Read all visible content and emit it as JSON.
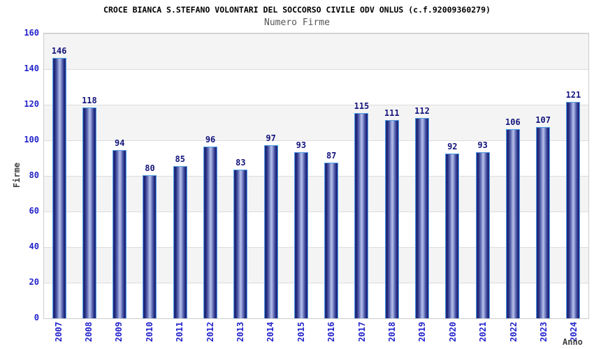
{
  "chart_data": {
    "type": "bar",
    "title": "CROCE BIANCA S.STEFANO VOLONTARI DEL SOCCORSO CIVILE ODV ONLUS (c.f.92009360279)",
    "subtitle": "Numero Firme",
    "xlabel": "Anno",
    "ylabel": "Firme",
    "categories": [
      "2007",
      "2008",
      "2009",
      "2010",
      "2011",
      "2012",
      "2013",
      "2014",
      "2015",
      "2016",
      "2017",
      "2018",
      "2019",
      "2020",
      "2021",
      "2022",
      "2023",
      "2024"
    ],
    "values": [
      146,
      118,
      94,
      80,
      85,
      96,
      83,
      97,
      93,
      87,
      115,
      111,
      112,
      92,
      93,
      106,
      107,
      121
    ],
    "ylim": [
      0,
      160
    ],
    "yticks": [
      0,
      20,
      40,
      60,
      80,
      100,
      120,
      140,
      160
    ],
    "grid": "horizontal-bands-alternating",
    "legend_position": "none",
    "bar_value_labels_shown": true,
    "colors": {
      "bar_dark": "#1a2170",
      "bar_light": "#b6c0e9",
      "bar_border": "#4f9de2",
      "tick_text": "#2222cc",
      "value_label_text": "#14147d",
      "title_text": "#000000",
      "subtitle_text": "#555555",
      "axis_title_text": "#404040",
      "band_gray": "#f4f4f4",
      "gridline": "#dddddd",
      "plot_border": "#cccccc"
    }
  }
}
